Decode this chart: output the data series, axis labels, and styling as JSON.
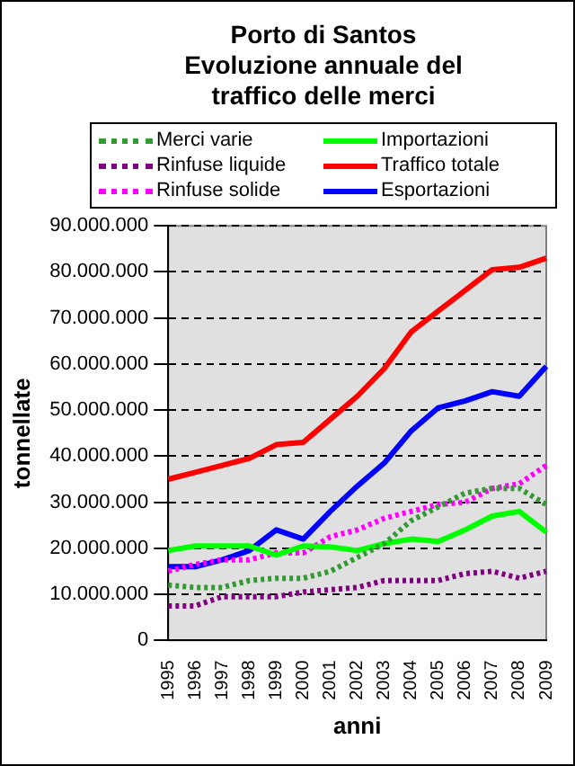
{
  "chart_data": {
    "type": "line",
    "title": "Porto di Santos\nEvoluzione annuale del\ntraffico delle merci",
    "xlabel": "anni",
    "ylabel": "tonnellate",
    "categories": [
      "1995",
      "1996",
      "1997",
      "1998",
      "1999",
      "2000",
      "2001",
      "2002",
      "2003",
      "2004",
      "2005",
      "2006",
      "2007",
      "2008",
      "2009"
    ],
    "series": [
      {
        "name": "Merci varie",
        "color": "#339933",
        "line_style": "dotted",
        "values": [
          12000000,
          11500000,
          11500000,
          13000000,
          13500000,
          13500000,
          15000000,
          18000000,
          21000000,
          26000000,
          29000000,
          32000000,
          33000000,
          33000000,
          29500000
        ]
      },
      {
        "name": "Importazioni",
        "color": "#00ff00",
        "line_style": "solid",
        "values": [
          19500000,
          20500000,
          20500000,
          20500000,
          18500000,
          20500000,
          20300000,
          19500000,
          21000000,
          22000000,
          21500000,
          24000000,
          27000000,
          28000000,
          23500000
        ]
      },
      {
        "name": "Rinfuse liquide",
        "color": "#800080",
        "line_style": "dotted",
        "values": [
          7500000,
          7500000,
          9500000,
          9500000,
          9500000,
          10500000,
          11000000,
          11500000,
          13000000,
          13000000,
          13000000,
          14500000,
          15000000,
          13500000,
          15000000
        ]
      },
      {
        "name": "Traffico totale",
        "color": "#ff0000",
        "line_style": "solid",
        "values": [
          35000000,
          36500000,
          38000000,
          39500000,
          42500000,
          43000000,
          48000000,
          53000000,
          59000000,
          67000000,
          71500000,
          76000000,
          80500000,
          81000000,
          83000000
        ]
      },
      {
        "name": "Rinfuse solide",
        "color": "#ff00ff",
        "line_style": "dotted",
        "values": [
          15000000,
          16500000,
          17500000,
          17500000,
          19000000,
          19000000,
          22500000,
          24000000,
          26500000,
          28000000,
          29500000,
          30000000,
          33000000,
          34000000,
          38000000
        ]
      },
      {
        "name": "Esportazioni",
        "color": "#0000ff",
        "line_style": "solid",
        "values": [
          16000000,
          16000000,
          17500000,
          19500000,
          24000000,
          22000000,
          28000000,
          33500000,
          38500000,
          45500000,
          50500000,
          52000000,
          54000000,
          53000000,
          59500000
        ]
      }
    ],
    "ylim": [
      0,
      90000000
    ],
    "yticks": [
      0,
      {
        "value": 10000000,
        "label": "10.000.000"
      },
      {
        "value": 20000000,
        "label": "20.000.000"
      },
      {
        "value": 30000000,
        "label": "30.000.000"
      },
      {
        "value": 40000000,
        "label": "40.000.000"
      },
      {
        "value": 50000000,
        "label": "50.000.000"
      },
      {
        "value": 60000000,
        "label": "60.000.000"
      },
      {
        "value": 70000000,
        "label": "70.000.000"
      },
      {
        "value": 80000000,
        "label": "80.000.000"
      },
      {
        "value": 90000000,
        "label": "90.000.000"
      }
    ],
    "grid": "y",
    "legend": "top",
    "marker": "none"
  }
}
